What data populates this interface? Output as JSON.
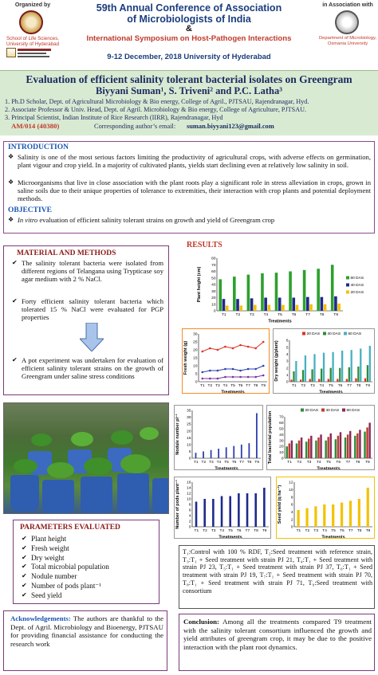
{
  "header": {
    "organized_by": "Organized by",
    "school_name": "School of Life Sciences, University of Hyderabad",
    "conference_line1": "59th Annual Conference of Association",
    "conference_line2": "of Microbiologists of India",
    "amp": "&",
    "symposium": "International Symposium on Host-Pathogen Interactions",
    "dates": "9-12 December, 2018   University of Hyderabad",
    "in_association": "in Association with",
    "dept_name": "Department of Microbiology, Osmania University"
  },
  "title": {
    "main": "Evaluation of efficient salinity tolerant bacterial isolates on Greengram",
    "authors": "Biyyani Suman¹, S. Triveni² and P.C. Latha³",
    "aff1": "1. Ph.D Scholar, Dept. of Agricultural Microbiology & Bio energy, College of Agril., PJTSAU, Rajendranagar, Hyd.",
    "aff2": "2. Associate Professor & Univ. Head, Dept. of Agril. Microbiology & Bio energy, College of Agriculture, PJTSAU.",
    "aff3": "3. Principal Scientist, Indian Institute of Rice Research (IIRR), Rajendranagar, Hyd",
    "code": "AM/014 (40380)",
    "email_label": "Corresponding author’s email:",
    "email": "suman.biyyani123@gmail.com"
  },
  "intro": {
    "heading": "INTRODUCTION",
    "p1": "Salinity is one of the most serious factors limiting the productivity of agricultural crops, with adverse effects on germination, plant vigour and crop yield. In a majority of cultivated plants, yields start declining even at relatively low salinity in soil.",
    "p2": "Microorganisms that live in close association with the plant roots play a significant role in stress alleviation in crops, grown in saline soils due to their unique properties of tolerance to extremities, their interaction with crop plants and potential deployment methods.",
    "obj_heading": "OBJECTIVE",
    "obj_italic": "In vitro",
    "obj_text": " evaluation of efficient salinity tolerant strains on growth and yield of Greengram crop"
  },
  "methods": {
    "heading": "MATERIAL AND METHODS",
    "b1": "The salinity tolerant bacteria were isolated from different regions of Telangana using Trypticase soy agar medium with 2 % NaCl.",
    "b2": "Forty efficient salinity tolerant bacteria which tolerated 15 % NaCl were evaluated for PGP properties",
    "b3": "A pot experiment was undertaken for evaluation of efficient salinity tolerant strains on the growth of Greengram under saline stress conditions"
  },
  "results": {
    "heading": "RESULTS"
  },
  "parameters": {
    "heading": "PARAMETERS EVALUATED",
    "items": [
      "Plant height",
      "Fresh weight",
      "Dry weight",
      "Total microbial population",
      "Nodule number",
      "Number of pods plant⁻¹",
      "Seed yield"
    ]
  },
  "ack": {
    "heading": "Acknowledgements:",
    "text": " The authors are thankful to the Dept. of Agril. Microbiology and Bioenergy, PJTSAU for providing financial assistance for conducting the research work"
  },
  "treatments": {
    "text": "T₁:Control with 100 % RDF, T₂:Seed treatment with reference strain, T₃:T₁ + Seed treatment with strain PJ 21, T₄:T₁ + Seed treatment with strain PJ 23, T₅:T₁ + Seed treatment with strain PJ 37, T₆:T₁ + Seed treatment with strain PJ 19, T₇:T₁ + Seed treatment with strain PJ 70, T₈:T₁ + Seed treatment with strain PJ 71, T₉:Seed treatment with consortium"
  },
  "conclusion": {
    "heading": "Conclusion:",
    "text": " Among all the treatments compared T9 treatment with the salinity tolerant consortium influenced the growth and yield attributes of greengram crop, it may be due to the positive interaction with the plant root dynamics."
  },
  "colors": {
    "green": "#2ea02e",
    "navy": "#1f2a8c",
    "gold": "#f2c200",
    "red": "#e03020",
    "blue": "#2c3fae"
  },
  "chart_data": [
    {
      "type": "bar",
      "ylabel": "Plant height (cm)",
      "xlabel": "Treatments",
      "categories": [
        "T1",
        "T2",
        "T3",
        "T4",
        "T5",
        "T6",
        "T7",
        "T8",
        "T9"
      ],
      "ylim": [
        0,
        80
      ],
      "yticks": [
        "0",
        "10",
        "20",
        "30",
        "40",
        "50",
        "60",
        "70",
        "80"
      ],
      "series": [
        {
          "name": "60 DAS",
          "values": [
            48,
            52,
            55,
            57,
            58,
            60,
            62,
            64,
            70
          ]
        },
        {
          "name": "40 DAS",
          "values": [
            18,
            18,
            19,
            20,
            20,
            20,
            21,
            21,
            22
          ]
        },
        {
          "name": "20 DAS",
          "values": [
            8,
            8,
            9,
            9,
            9,
            9,
            10,
            10,
            11
          ]
        }
      ]
    },
    {
      "type": "line",
      "ylabel": "Fresh weight (g)",
      "xlabel": "Treatments",
      "categories": [
        "T1",
        "T2",
        "T3",
        "T4",
        "T5",
        "T6",
        "T7",
        "T8",
        "T9"
      ],
      "ylim": [
        0,
        30
      ],
      "yticks": [
        "0",
        "5",
        "10",
        "15",
        "20",
        "25",
        "30"
      ],
      "series": [
        {
          "values": [
            19,
            21,
            20,
            22,
            21,
            23,
            22,
            21,
            25
          ]
        },
        {
          "values": [
            6,
            7,
            7,
            8,
            8,
            7,
            8,
            8,
            10
          ]
        },
        {
          "values": [
            2,
            2,
            2,
            3,
            3,
            3,
            3,
            3,
            4
          ]
        }
      ]
    },
    {
      "type": "bar",
      "ylabel": "Dry weight (g/plant)",
      "xlabel": "Treatments",
      "categories": [
        "T1",
        "T2",
        "T3",
        "T4",
        "T5",
        "T6",
        "T7",
        "T8",
        "T9"
      ],
      "ylim": [
        0,
        6
      ],
      "yticks": [
        "0",
        "1",
        "2",
        "3",
        "4",
        "5",
        "6"
      ],
      "series": [
        {
          "name": "20 DAS",
          "values": [
            0.3,
            0.3,
            0.4,
            0.4,
            0.4,
            0.4,
            0.4,
            0.5,
            0.5
          ]
        },
        {
          "name": "40 DAS",
          "values": [
            1.5,
            1.7,
            1.8,
            1.9,
            2.0,
            2.0,
            2.1,
            2.2,
            2.4
          ]
        },
        {
          "name": "60 DAS",
          "values": [
            3.0,
            3.8,
            4.0,
            4.2,
            4.3,
            4.5,
            4.6,
            4.8,
            5.2
          ]
        }
      ]
    },
    {
      "type": "bar",
      "ylabel": "Nodule number pl⁻¹",
      "xlabel": "Treatments",
      "categories": [
        "T1",
        "T2",
        "T3",
        "T4",
        "T5",
        "T6",
        "T7",
        "T8",
        "T9"
      ],
      "ylim": [
        0,
        35
      ],
      "yticks": [
        "0",
        "5",
        "10",
        "15",
        "20",
        "25",
        "30",
        "35"
      ],
      "series": [
        {
          "values": [
            4,
            5,
            6,
            7,
            8,
            9,
            10,
            11,
            33
          ]
        }
      ]
    },
    {
      "type": "bar",
      "ylabel": "Total bacterial population",
      "xlabel": "Treatments",
      "categories": [
        "T1",
        "T2",
        "T3",
        "T4",
        "T5",
        "T6",
        "T7",
        "T8",
        "T9"
      ],
      "ylim": [
        0,
        70
      ],
      "yticks": [
        "0",
        "10",
        "20",
        "30",
        "40",
        "50",
        "60",
        "70"
      ],
      "series": [
        {
          "name": "20 DAS",
          "values": [
            20,
            25,
            28,
            30,
            30,
            32,
            35,
            38,
            45
          ]
        },
        {
          "name": "40 DAS",
          "values": [
            25,
            30,
            33,
            35,
            36,
            38,
            40,
            42,
            52
          ]
        },
        {
          "name": "60 DAS",
          "values": [
            30,
            35,
            38,
            40,
            42,
            44,
            46,
            48,
            60
          ]
        }
      ]
    },
    {
      "type": "bar",
      "ylabel": "Number of pods plant⁻¹",
      "xlabel": "Treatments",
      "categories": [
        "T1",
        "T2",
        "T3",
        "T4",
        "T5",
        "T6",
        "T7",
        "T8",
        "T9"
      ],
      "ylim": [
        0,
        16
      ],
      "yticks": [
        "0",
        "2",
        "4",
        "6",
        "8",
        "10",
        "12",
        "14",
        "16"
      ],
      "series": [
        {
          "values": [
            9,
            10,
            10,
            11,
            11,
            12,
            12,
            12,
            14
          ]
        }
      ]
    },
    {
      "type": "bar",
      "ylabel": "Seed yield (q ha⁻¹)",
      "xlabel": "Treatments",
      "categories": [
        "T1",
        "T2",
        "T3",
        "T4",
        "T5",
        "T6",
        "T7",
        "T8",
        "T9"
      ],
      "ylim": [
        0,
        12
      ],
      "yticks": [
        "0",
        "2",
        "4",
        "6",
        "8",
        "10",
        "12"
      ],
      "series": [
        {
          "values": [
            4.5,
            5.0,
            5.5,
            6.0,
            6.0,
            6.5,
            7.0,
            7.5,
            10.5
          ]
        }
      ]
    }
  ]
}
